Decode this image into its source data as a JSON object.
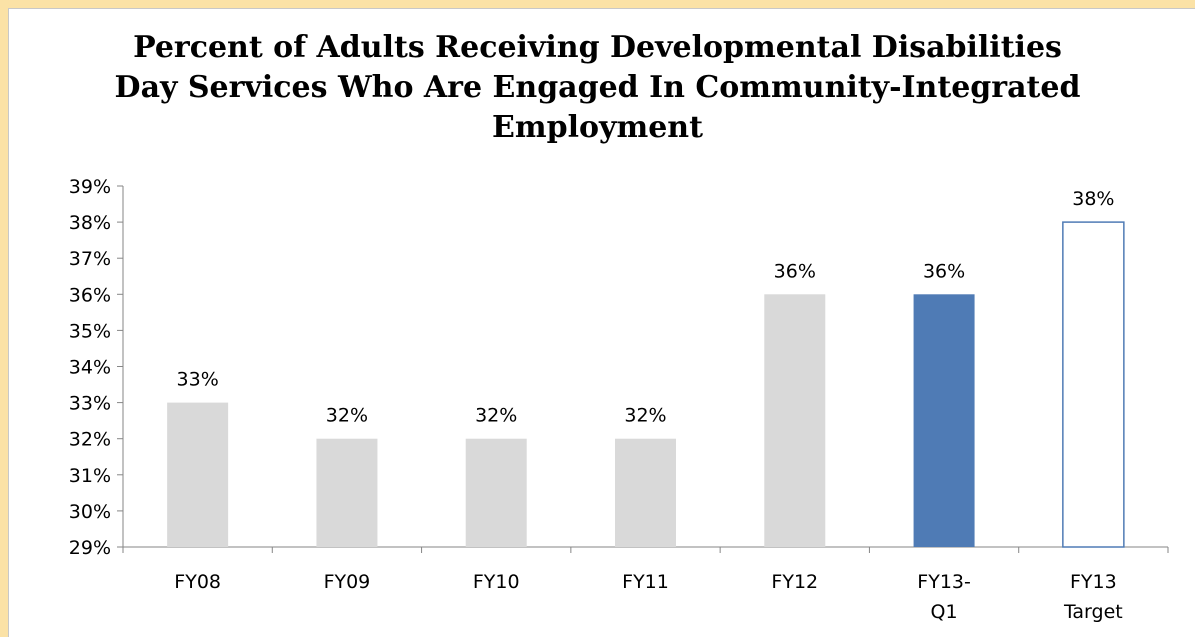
{
  "chart_data": {
    "type": "bar",
    "title": "Percent of Adults Receiving Developmental Disabilities\nDay Services Who Are Engaged In Community-Integrated\nEmployment",
    "xlabel": "",
    "ylabel": "",
    "categories": [
      "FY08",
      "FY09",
      "FY10",
      "FY11",
      "FY12",
      "FY13-\nQ1",
      "FY13\nTarget"
    ],
    "values": [
      33,
      32,
      32,
      32,
      36,
      36,
      38
    ],
    "data_labels": [
      "33%",
      "32%",
      "32%",
      "32%",
      "36%",
      "36%",
      "38%"
    ],
    "ylim": [
      29,
      39
    ],
    "yticks": [
      "29%",
      "30%",
      "31%",
      "32%",
      "33%",
      "34%",
      "35%",
      "36%",
      "37%",
      "38%",
      "39%"
    ],
    "grid": false,
    "bar_styles": [
      {
        "fill": "#d9d9d9",
        "stroke": "none"
      },
      {
        "fill": "#d9d9d9",
        "stroke": "none"
      },
      {
        "fill": "#d9d9d9",
        "stroke": "none"
      },
      {
        "fill": "#d9d9d9",
        "stroke": "none"
      },
      {
        "fill": "#d9d9d9",
        "stroke": "none"
      },
      {
        "fill": "#4f7bb5",
        "stroke": "none"
      },
      {
        "fill": "#ffffff",
        "stroke": "#4f7bb5"
      }
    ]
  }
}
